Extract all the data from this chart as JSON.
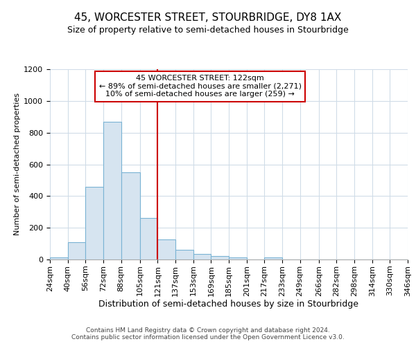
{
  "title1": "45, WORCESTER STREET, STOURBRIDGE, DY8 1AX",
  "title2": "Size of property relative to semi-detached houses in Stourbridge",
  "xlabel": "Distribution of semi-detached houses by size in Stourbridge",
  "ylabel": "Number of semi-detached properties",
  "bins": [
    24,
    40,
    56,
    72,
    88,
    105,
    121,
    137,
    153,
    169,
    185,
    201,
    217,
    233,
    249,
    266,
    282,
    298,
    314,
    330,
    346
  ],
  "bin_labels": [
    "24sqm",
    "40sqm",
    "56sqm",
    "72sqm",
    "88sqm",
    "105sqm",
    "121sqm",
    "137sqm",
    "153sqm",
    "169sqm",
    "185sqm",
    "201sqm",
    "217sqm",
    "233sqm",
    "249sqm",
    "266sqm",
    "282sqm",
    "298sqm",
    "314sqm",
    "330sqm",
    "346sqm"
  ],
  "values": [
    15,
    110,
    460,
    870,
    550,
    260,
    125,
    60,
    35,
    20,
    15,
    0,
    15,
    0,
    0,
    0,
    0,
    0,
    0,
    0
  ],
  "bar_color": "#d6e4f0",
  "bar_edge_color": "#7ab3d4",
  "vline_x": 121,
  "vline_color": "#cc0000",
  "annotation_text_line1": "45 WORCESTER STREET: 122sqm",
  "annotation_text_line2": "← 89% of semi-detached houses are smaller (2,271)",
  "annotation_text_line3": "10% of semi-detached houses are larger (259) →",
  "annotation_box_color": "#cc0000",
  "ylim": [
    0,
    1200
  ],
  "yticks": [
    0,
    200,
    400,
    600,
    800,
    1000,
    1200
  ],
  "background_color": "#ffffff",
  "plot_bg_color": "#ffffff",
  "footer": "Contains HM Land Registry data © Crown copyright and database right 2024.\nContains public sector information licensed under the Open Government Licence v3.0.",
  "grid_color": "#d0dce8",
  "title1_fontsize": 11,
  "title2_fontsize": 9,
  "ylabel_fontsize": 8,
  "xlabel_fontsize": 9,
  "tick_fontsize": 8,
  "footer_fontsize": 6.5
}
